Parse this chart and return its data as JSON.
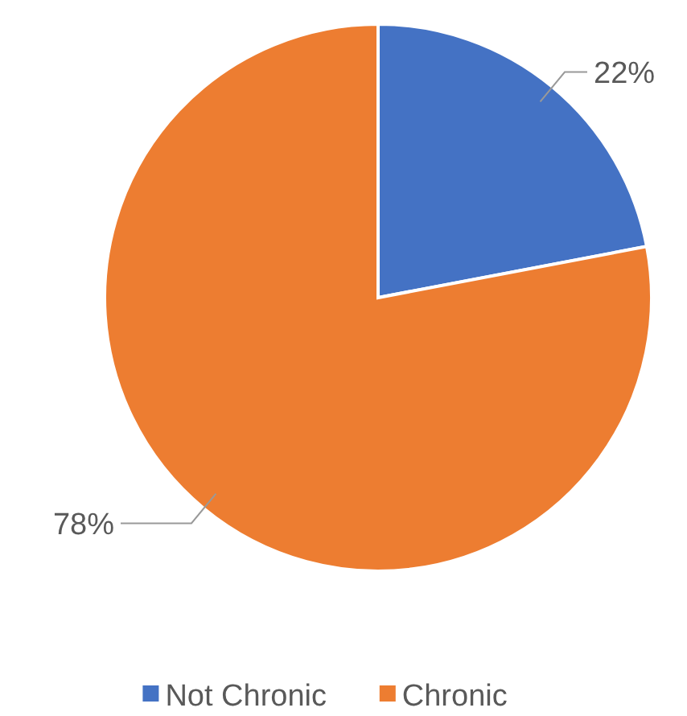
{
  "chart_data": {
    "type": "pie",
    "categories": [
      "Not Chronic",
      "Chronic"
    ],
    "values": [
      22,
      78
    ],
    "colors": [
      "#4472c4",
      "#ed7d31"
    ],
    "legend": "bottom",
    "value_labels": [
      "22%",
      "78%"
    ]
  }
}
